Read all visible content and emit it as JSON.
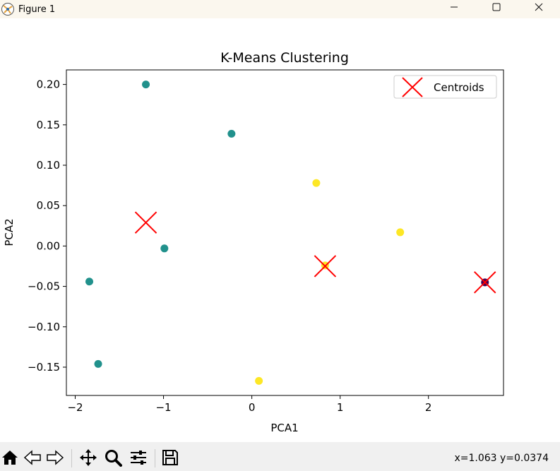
{
  "window": {
    "title": "Figure 1",
    "minimize_icon": "minimize-icon",
    "maximize_icon": "maximize-icon",
    "close_icon": "close-icon"
  },
  "toolbar": {
    "buttons": [
      "home-icon",
      "back-icon",
      "forward-icon",
      "pan-icon",
      "zoom-icon",
      "configure-subplots-icon",
      "save-icon"
    ],
    "coords": "x=1.063 y=0.0374"
  },
  "chart_data": {
    "type": "scatter",
    "title": "K-Means Clustering",
    "xlabel": "PCA1",
    "ylabel": "PCA2",
    "xlim": [
      -2.1,
      2.85
    ],
    "ylim": [
      -0.185,
      0.218
    ],
    "xticks": [
      -2,
      -1,
      0,
      1,
      2
    ],
    "yticks": [
      0.2,
      0.15,
      0.1,
      0.05,
      0.0,
      -0.05,
      -0.1,
      -0.15
    ],
    "ytick_labels": [
      "0.20",
      "0.15",
      "0.10",
      "0.05",
      "0.00",
      "−0.05",
      "−0.10",
      "−0.15"
    ],
    "xtick_labels": [
      "−2",
      "−1",
      "0",
      "1",
      "2"
    ],
    "grid": false,
    "legend": {
      "position": "top-right",
      "entries": [
        "Centroids"
      ]
    },
    "colors": {
      "teal": "#21918c",
      "yellow": "#fde725",
      "purple": "#440154",
      "centroid": "#ff0000"
    },
    "points": [
      {
        "x": -1.2,
        "y": 0.2,
        "cluster": "teal"
      },
      {
        "x": -0.23,
        "y": 0.139,
        "cluster": "teal"
      },
      {
        "x": -0.99,
        "y": -0.003,
        "cluster": "teal"
      },
      {
        "x": -1.84,
        "y": -0.044,
        "cluster": "teal"
      },
      {
        "x": -1.74,
        "y": -0.146,
        "cluster": "teal"
      },
      {
        "x": 0.73,
        "y": 0.078,
        "cluster": "yellow"
      },
      {
        "x": 1.68,
        "y": 0.017,
        "cluster": "yellow"
      },
      {
        "x": 0.83,
        "y": -0.024,
        "cluster": "yellow"
      },
      {
        "x": 0.08,
        "y": -0.167,
        "cluster": "yellow"
      },
      {
        "x": 2.64,
        "y": -0.045,
        "cluster": "purple"
      }
    ],
    "centroids": [
      {
        "x": -1.2,
        "y": 0.029
      },
      {
        "x": 0.83,
        "y": -0.025
      },
      {
        "x": 2.64,
        "y": -0.045
      }
    ]
  }
}
